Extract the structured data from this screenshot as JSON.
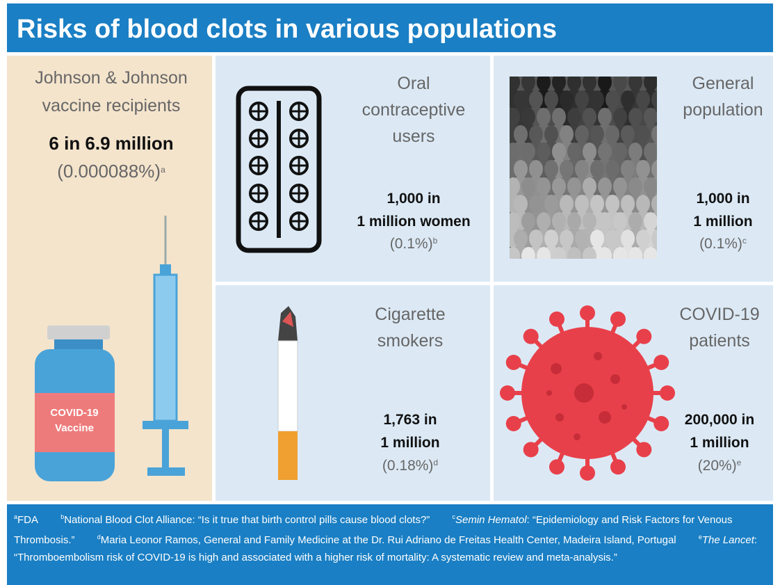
{
  "header": {
    "title": "Risks of blood clots in various populations"
  },
  "panels": [
    {
      "label": [
        "Johnson & Johnson",
        "vaccine recipients"
      ],
      "stat": [
        "6 in 6.9 million"
      ],
      "pct": "(0.000088%)",
      "note": "a"
    },
    {
      "label": [
        "Oral",
        "contraceptive",
        "users"
      ],
      "stat": [
        "1,000 in",
        "1 million women"
      ],
      "pct": "(0.1%)",
      "note": "b"
    },
    {
      "label": [
        "General",
        "population"
      ],
      "stat": [
        "1,000 in",
        "1 million"
      ],
      "pct": "(0.1%)",
      "note": "c"
    },
    {
      "label": [
        "Cigarette",
        "smokers"
      ],
      "stat": [
        "1,763 in",
        "1 million"
      ],
      "pct": "(0.18%)",
      "note": "d"
    },
    {
      "label": [
        "COVID-19",
        "patients"
      ],
      "stat": [
        "200,000 in",
        "1 million"
      ],
      "pct": "(20%)",
      "note": "e"
    }
  ],
  "vial_label": [
    "COVID-19",
    "Vaccine"
  ],
  "footnotes": [
    {
      "mark": "a",
      "text": "FDA"
    },
    {
      "mark": "b",
      "text": "National Blood Clot Alliance: “Is it true that birth control pills cause blood clots?”"
    },
    {
      "mark": "c",
      "source": "Semin Hematol",
      "text": ": “Epidemiology and Risk Factors for Venous Thrombosis.”"
    },
    {
      "mark": "d",
      "text": "Maria Leonor Ramos, General and Family Medicine at the Dr. Rui Adriano de Freitas Health Center, Madeira Island, Portugal"
    },
    {
      "mark": "e",
      "source": "The Lancet",
      "text": ": “Thromboembolism risk of COVID-19 is high and associated with a higher risk of mortality: A systematic review and meta-analysis.”"
    }
  ]
}
